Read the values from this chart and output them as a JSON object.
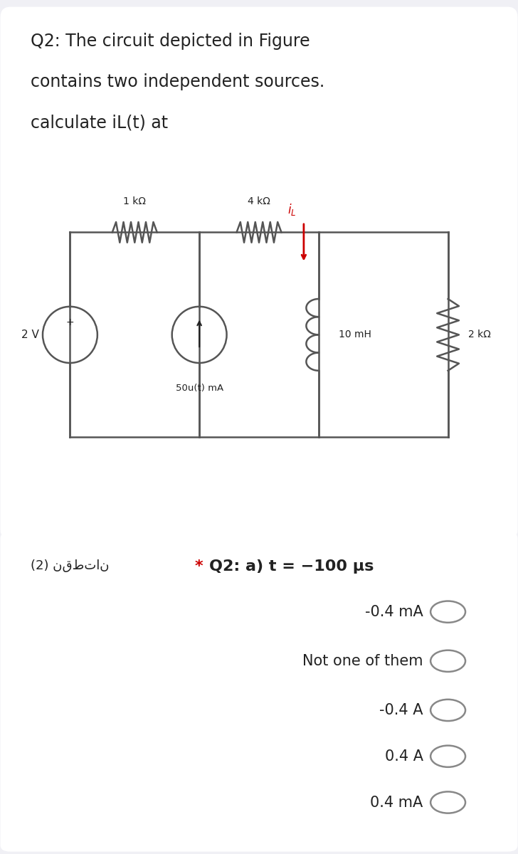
{
  "bg_color": "#f0f0f5",
  "card1_color": "#ffffff",
  "card2_color": "#ffffff",
  "title_line1": "Q2: The circuit depicted in Figure",
  "title_line2": "contains two independent sources.",
  "title_line3": "calculate iL(t) at",
  "points_label": "(2) نقطتان",
  "options": [
    "-0.4 mA",
    "Not one of them",
    "-0.4 A",
    "0.4 A",
    "0.4 mA"
  ],
  "resistor1_label": "1 kΩ",
  "resistor2_label": "4 kΩ",
  "current_source_label": "50u(t) mA",
  "voltage_source_label": "2 V",
  "inductor_label": "10 mH",
  "resistor3_label": "2 kΩ",
  "text_color": "#222222",
  "red_color": "#cc0000",
  "gray_color": "#888888",
  "lc": "#555555",
  "title_fontsize": 17,
  "option_fontsize": 15,
  "question_fontsize": 16
}
